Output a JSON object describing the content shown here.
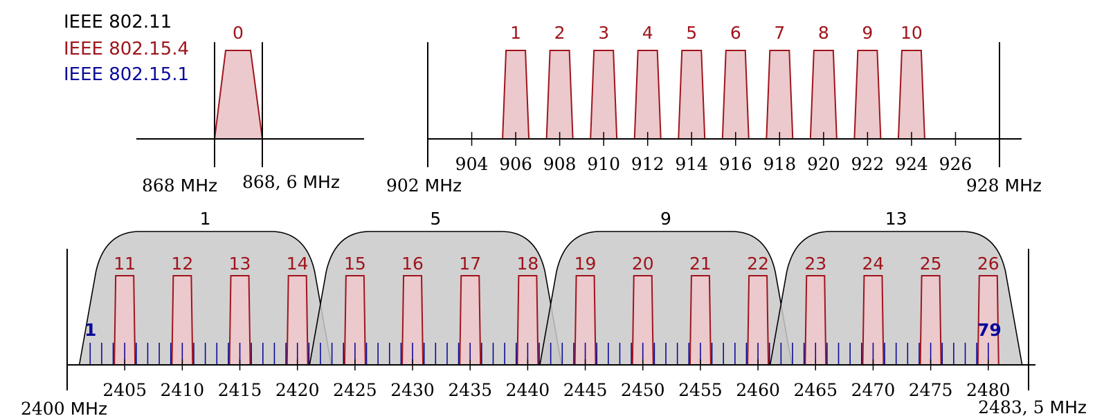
{
  "legend": [
    {
      "label": "IEEE 802.11",
      "color": "#000000"
    },
    {
      "label": "IEEE 802.15.4",
      "color": "#a0141c"
    },
    {
      "label": "IEEE 802.15.1",
      "color": "#0a0a9a"
    }
  ],
  "colors": {
    "axis": "#000000",
    "zigbee_stroke": "#a0141c",
    "zigbee_fill": "#ebc9cc",
    "wifi_fill": "#c9c9c9",
    "bluetooth": "#0a0a9a"
  },
  "band868": {
    "channel": "0",
    "start_number": "868",
    "start_unit": "MHz",
    "end_number": "868, 6",
    "end_unit": "MHz"
  },
  "band915": {
    "channels": [
      "1",
      "2",
      "3",
      "4",
      "5",
      "6",
      "7",
      "8",
      "9",
      "10"
    ],
    "channel_centers": [
      906,
      908,
      910,
      912,
      914,
      916,
      918,
      920,
      922,
      924
    ],
    "ticks": [
      "904",
      "906",
      "908",
      "910",
      "912",
      "914",
      "916",
      "918",
      "920",
      "922",
      "924",
      "926"
    ],
    "tick_values": [
      904,
      906,
      908,
      910,
      912,
      914,
      916,
      918,
      920,
      922,
      924,
      926
    ],
    "start_number": "902",
    "start_unit": "MHz",
    "end_number": "928",
    "end_unit": "MHz"
  },
  "band24": {
    "wifi_channels": [
      "1",
      "5",
      "9",
      "13"
    ],
    "wifi_centers": [
      2412,
      2432,
      2452,
      2472
    ],
    "zigbee_channels": [
      "11",
      "12",
      "13",
      "14",
      "15",
      "16",
      "17",
      "18",
      "19",
      "20",
      "21",
      "22",
      "23",
      "24",
      "25",
      "26"
    ],
    "zigbee_centers": [
      2405,
      2410,
      2415,
      2420,
      2425,
      2430,
      2435,
      2440,
      2445,
      2450,
      2455,
      2460,
      2465,
      2470,
      2475,
      2480
    ],
    "ticks": [
      "2405",
      "2410",
      "2415",
      "2420",
      "2425",
      "2430",
      "2435",
      "2440",
      "2445",
      "2450",
      "2455",
      "2460",
      "2465",
      "2470",
      "2475",
      "2480"
    ],
    "tick_values": [
      2405,
      2410,
      2415,
      2420,
      2425,
      2430,
      2435,
      2440,
      2445,
      2450,
      2455,
      2460,
      2465,
      2470,
      2475,
      2480
    ],
    "bluetooth_first": "1",
    "bluetooth_last": "79",
    "bluetooth_count": 79,
    "start_number": "2400",
    "start_unit": "MHz",
    "end_number": "2483, 5",
    "end_unit": "MHz"
  }
}
